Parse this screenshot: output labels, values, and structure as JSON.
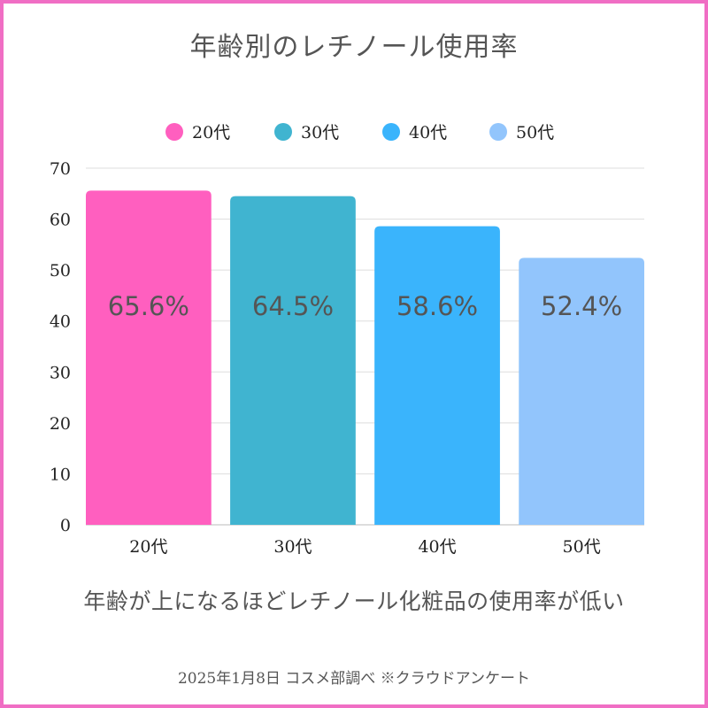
{
  "chart_data": {
    "type": "bar",
    "title": "年齢別のレチノール使用率",
    "categories": [
      "20代",
      "30代",
      "40代",
      "50代"
    ],
    "values": [
      65.6,
      64.5,
      58.6,
      52.4
    ],
    "value_labels": [
      "65.6%",
      "64.5%",
      "58.6%",
      "52.4%"
    ],
    "colors": [
      "#ff5fbf",
      "#40b4d0",
      "#3ab4fc",
      "#92c5fc"
    ],
    "legend": [
      "20代",
      "30代",
      "40代",
      "50代"
    ],
    "legend_position": "top",
    "ylim": [
      0,
      70
    ],
    "yticks": [
      0,
      10,
      20,
      30,
      40,
      50,
      60,
      70
    ],
    "xlabel": "",
    "ylabel": "",
    "grid": true
  },
  "caption": "年齢が上になるほどレチノール化粧品の使用率が低い",
  "source": "2025年1月8日 コスメ部調べ ※クラウドアンケート",
  "colors": {
    "frame": "#f06ec4",
    "grid": "#dddddd",
    "text": "#555555"
  }
}
